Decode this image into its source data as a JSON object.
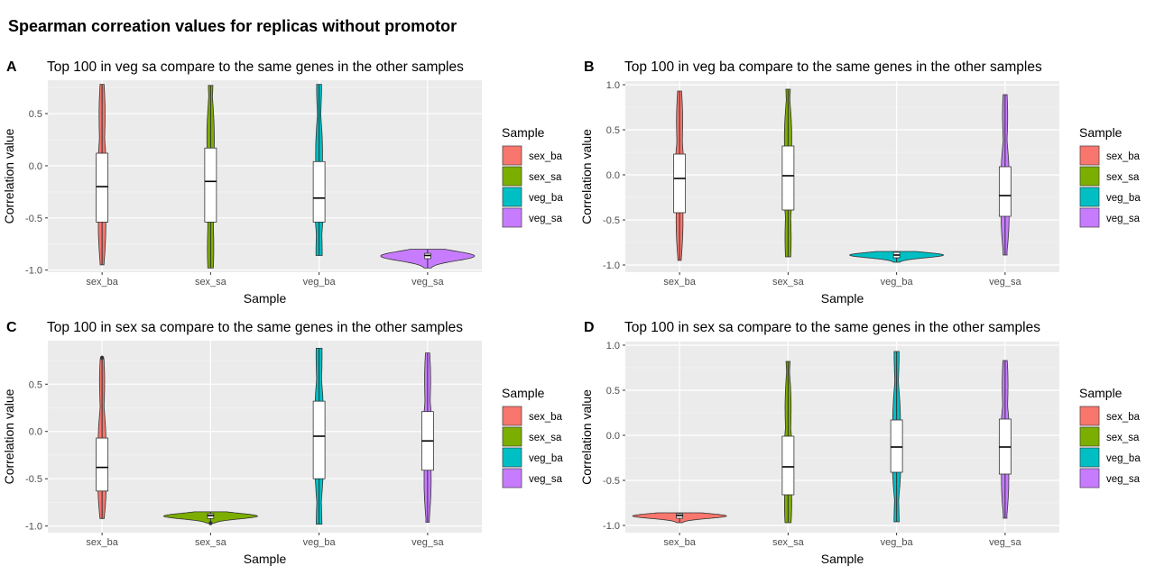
{
  "figure_title": "Spearman correation values for replicas without promotor",
  "colors": {
    "sex_ba": "#F8766D",
    "sex_sa": "#7CAE00",
    "veg_ba": "#00BFC4",
    "veg_sa": "#C77CFF"
  },
  "chart_data": [
    {
      "type": "violin",
      "tag": "A",
      "title": "Top 100 in veg sa compare to the same genes in the other samples",
      "xlabel": "Sample",
      "ylabel": "Correlation value",
      "categories": [
        "sex_ba",
        "sex_sa",
        "veg_ba",
        "veg_sa"
      ],
      "yticks": [
        -1.0,
        -0.5,
        0.0,
        0.5
      ],
      "ytick_labels": [
        "-1.0",
        "-0.5",
        "0.0",
        "0.5"
      ],
      "ylim": [
        -1.02,
        0.82
      ],
      "legend_title": "Sample",
      "legend_position": "right",
      "grid": true,
      "series": [
        {
          "name": "sex_ba",
          "min": -0.95,
          "max": 0.78,
          "q1": -0.54,
          "median": -0.2,
          "q3": 0.12
        },
        {
          "name": "sex_sa",
          "min": -0.98,
          "max": 0.77,
          "q1": -0.54,
          "median": -0.15,
          "q3": 0.17
        },
        {
          "name": "veg_ba",
          "min": -0.86,
          "max": 0.78,
          "q1": -0.54,
          "median": -0.31,
          "q3": 0.04
        },
        {
          "name": "veg_sa",
          "min": -0.98,
          "max": -0.8,
          "q1": -0.89,
          "median": -0.86,
          "q3": -0.84
        }
      ]
    },
    {
      "type": "violin",
      "tag": "B",
      "title": "Top 100 in veg ba compare to the same genes in the other samples",
      "xlabel": "Sample",
      "ylabel": "Correlation value",
      "categories": [
        "sex_ba",
        "sex_sa",
        "veg_ba",
        "veg_sa"
      ],
      "yticks": [
        -1.0,
        -0.5,
        0.0,
        0.5,
        1.0
      ],
      "ytick_labels": [
        "-1.0",
        "-0.5",
        "0.0",
        "0.5",
        "1.0"
      ],
      "ylim": [
        -1.08,
        1.04
      ],
      "legend_title": "Sample",
      "legend_position": "right",
      "grid": true,
      "series": [
        {
          "name": "sex_ba",
          "min": -0.95,
          "max": 0.93,
          "q1": -0.42,
          "median": -0.04,
          "q3": 0.23
        },
        {
          "name": "sex_sa",
          "min": -0.91,
          "max": 0.95,
          "q1": -0.39,
          "median": -0.01,
          "q3": 0.32
        },
        {
          "name": "veg_ba",
          "min": -0.97,
          "max": -0.85,
          "q1": -0.92,
          "median": -0.89,
          "q3": -0.86
        },
        {
          "name": "veg_sa",
          "min": -0.89,
          "max": 0.89,
          "q1": -0.46,
          "median": -0.23,
          "q3": 0.09
        }
      ]
    },
    {
      "type": "violin",
      "tag": "C",
      "title": "Top 100 in sex sa compare to the same genes in the other samples",
      "xlabel": "Sample",
      "ylabel": "Correlation value",
      "categories": [
        "sex_ba",
        "sex_sa",
        "veg_ba",
        "veg_sa"
      ],
      "yticks": [
        -1.0,
        -0.5,
        0.0,
        0.5
      ],
      "ytick_labels": [
        "-1.0",
        "-0.5",
        "0.0",
        "0.5"
      ],
      "ylim": [
        -1.07,
        0.96
      ],
      "legend_title": "Sample",
      "legend_position": "right",
      "grid": true,
      "series": [
        {
          "name": "sex_ba",
          "min": -0.92,
          "max": 0.77,
          "q1": -0.63,
          "median": -0.38,
          "q3": -0.07,
          "outliers": [
            0.78
          ]
        },
        {
          "name": "sex_sa",
          "min": -0.97,
          "max": -0.85,
          "q1": -0.92,
          "median": -0.89,
          "q3": -0.87,
          "outliers": [
            -0.97
          ]
        },
        {
          "name": "veg_ba",
          "min": -0.98,
          "max": 0.88,
          "q1": -0.5,
          "median": -0.05,
          "q3": 0.32
        },
        {
          "name": "veg_sa",
          "min": -0.96,
          "max": 0.83,
          "q1": -0.41,
          "median": -0.1,
          "q3": 0.21
        }
      ]
    },
    {
      "type": "violin",
      "tag": "D",
      "title": "Top 100 in sex sa compare to the same genes in the other samples",
      "xlabel": "Sample",
      "ylabel": "Correlation value",
      "categories": [
        "sex_ba",
        "sex_sa",
        "veg_ba",
        "veg_sa"
      ],
      "yticks": [
        -1.0,
        -0.5,
        0.0,
        0.5,
        1.0
      ],
      "ytick_labels": [
        "-1.0",
        "-0.5",
        "0.0",
        "0.5",
        "1.0"
      ],
      "ylim": [
        -1.08,
        1.04
      ],
      "legend_title": "Sample",
      "legend_position": "right",
      "grid": true,
      "series": [
        {
          "name": "sex_ba",
          "min": -0.97,
          "max": -0.86,
          "q1": -0.92,
          "median": -0.89,
          "q3": -0.87
        },
        {
          "name": "sex_sa",
          "min": -0.97,
          "max": 0.82,
          "q1": -0.66,
          "median": -0.35,
          "q3": -0.01
        },
        {
          "name": "veg_ba",
          "min": -0.96,
          "max": 0.93,
          "q1": -0.41,
          "median": -0.13,
          "q3": 0.17
        },
        {
          "name": "veg_sa",
          "min": -0.92,
          "max": 0.83,
          "q1": -0.43,
          "median": -0.13,
          "q3": 0.18
        }
      ]
    }
  ]
}
